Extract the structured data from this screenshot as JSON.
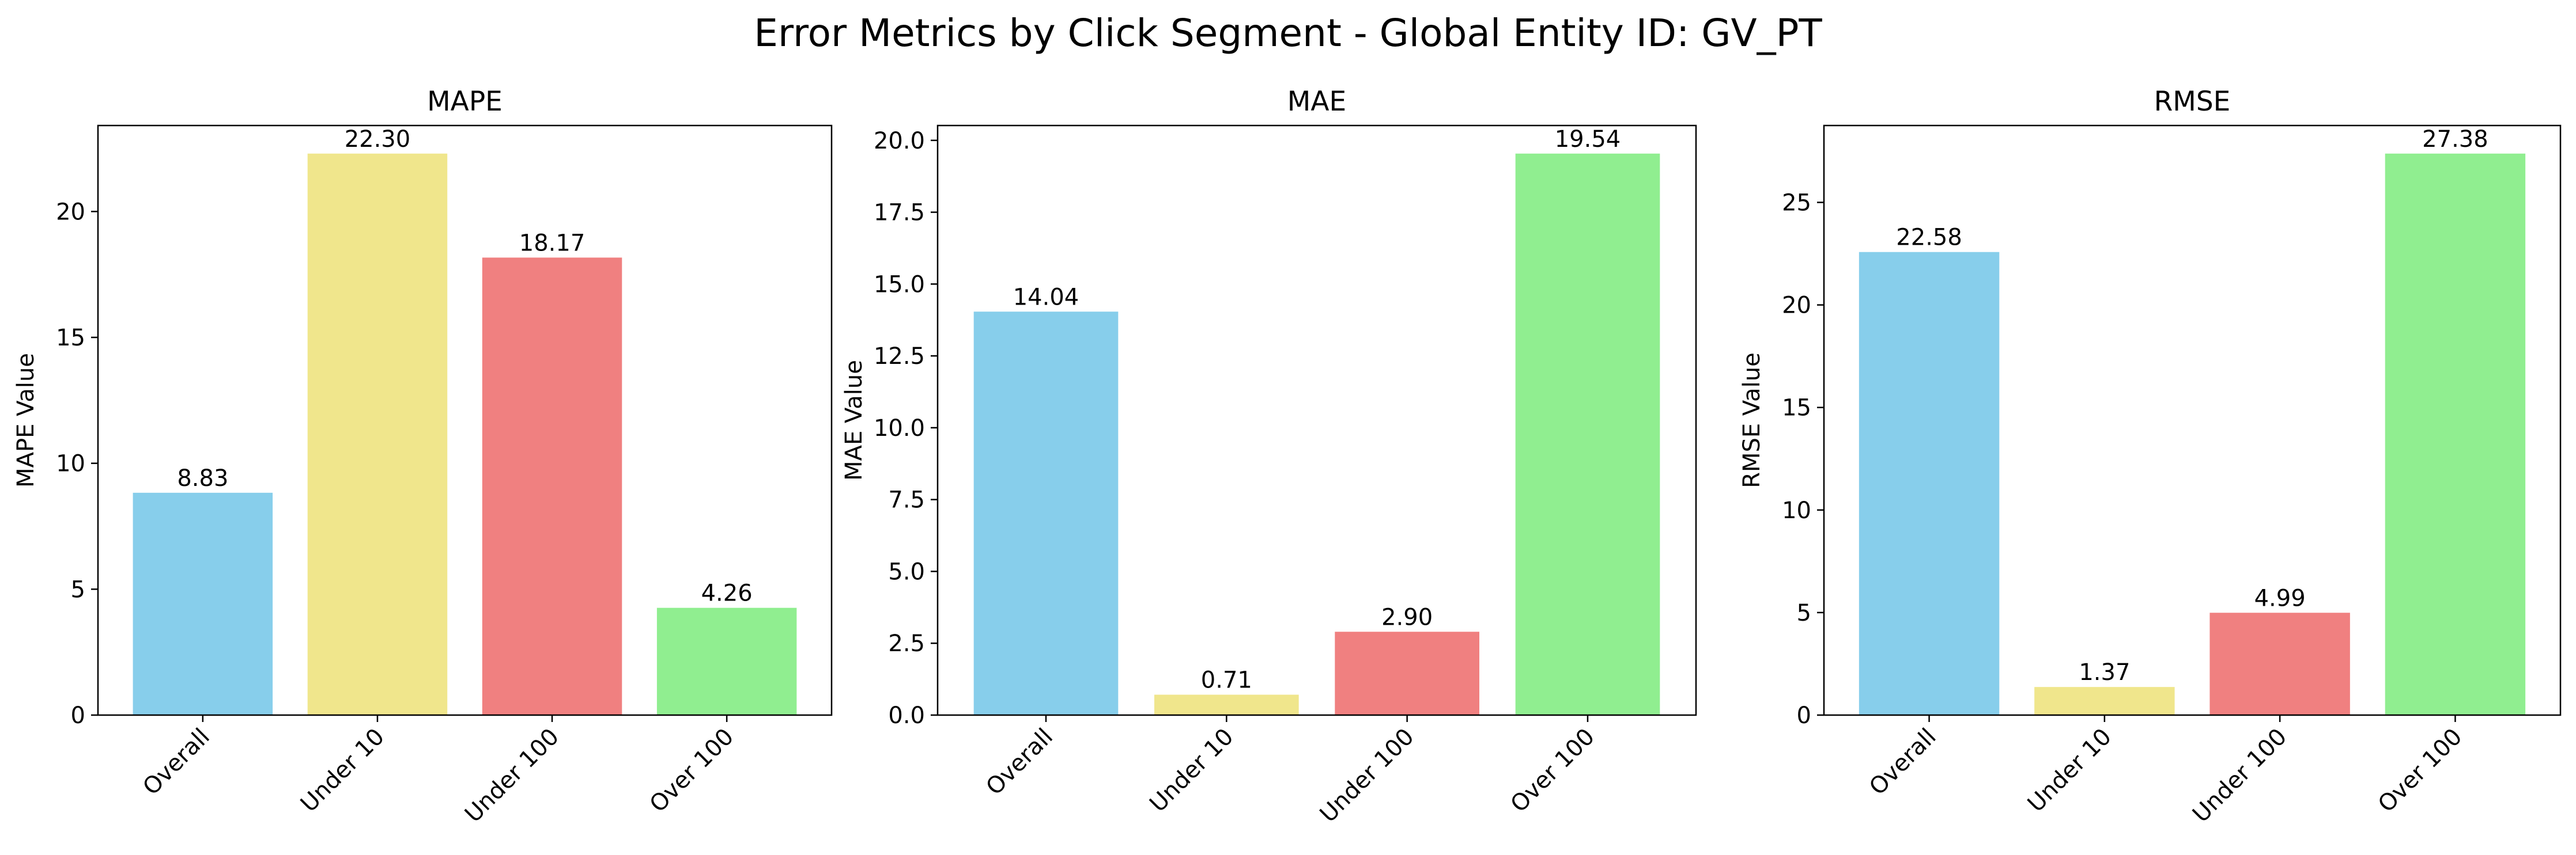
{
  "figure": {
    "title": "Error Metrics by Click Segment - Global Entity ID: GV_PT"
  },
  "chart_data": [
    {
      "type": "bar",
      "title": "MAPE",
      "xlabel": "",
      "ylabel": "MAPE Value",
      "categories": [
        "Overall",
        "Under 10",
        "Under 100",
        "Over 100"
      ],
      "values": [
        8.83,
        22.3,
        18.17,
        4.26
      ],
      "value_labels": [
        "8.83",
        "22.30",
        "18.17",
        "4.26"
      ],
      "colors": [
        "#87ceeb",
        "#f0e68c",
        "#f08080",
        "#90ee90"
      ],
      "ylim": [
        0,
        23.415
      ],
      "yticks": [
        0,
        5,
        10,
        15,
        20
      ],
      "ytick_labels": [
        "0",
        "5",
        "10",
        "15",
        "20"
      ],
      "grid": false,
      "legend": "none"
    },
    {
      "type": "bar",
      "title": "MAE",
      "xlabel": "",
      "ylabel": "MAE Value",
      "categories": [
        "Overall",
        "Under 10",
        "Under 100",
        "Over 100"
      ],
      "values": [
        14.04,
        0.71,
        2.9,
        19.54
      ],
      "value_labels": [
        "14.04",
        "0.71",
        "2.90",
        "19.54"
      ],
      "colors": [
        "#87ceeb",
        "#f0e68c",
        "#f08080",
        "#90ee90"
      ],
      "ylim": [
        0,
        20.517
      ],
      "yticks": [
        0,
        2.5,
        5,
        7.5,
        10,
        12.5,
        15,
        17.5,
        20
      ],
      "ytick_labels": [
        "0.0",
        "2.5",
        "5.0",
        "7.5",
        "10.0",
        "12.5",
        "15.0",
        "17.5",
        "20.0"
      ],
      "grid": false,
      "legend": "none"
    },
    {
      "type": "bar",
      "title": "RMSE",
      "xlabel": "",
      "ylabel": "RMSE Value",
      "categories": [
        "Overall",
        "Under 10",
        "Under 100",
        "Over 100"
      ],
      "values": [
        22.58,
        1.37,
        4.99,
        27.38
      ],
      "value_labels": [
        "22.58",
        "1.37",
        "4.99",
        "27.38"
      ],
      "colors": [
        "#87ceeb",
        "#f0e68c",
        "#f08080",
        "#90ee90"
      ],
      "ylim": [
        0,
        28.749
      ],
      "yticks": [
        0,
        5,
        10,
        15,
        20,
        25
      ],
      "ytick_labels": [
        "0",
        "5",
        "10",
        "15",
        "20",
        "25"
      ],
      "grid": false,
      "legend": "none"
    }
  ]
}
